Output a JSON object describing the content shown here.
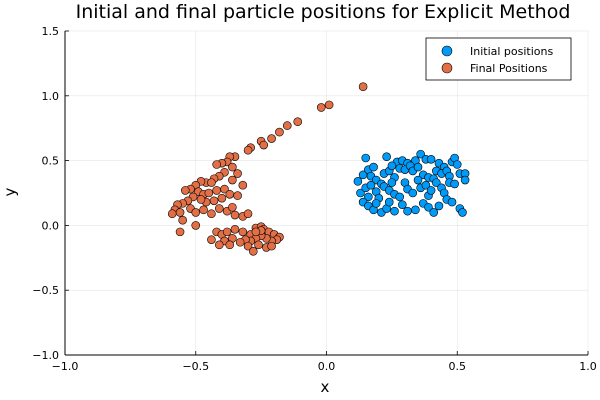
{
  "chart_data": {
    "type": "scatter",
    "title": "Initial and final particle positions for Explicit Method",
    "xlabel": "x",
    "ylabel": "y",
    "xlim": [
      -1.0,
      1.0
    ],
    "ylim": [
      -1.0,
      1.5
    ],
    "xticks": [
      -1.0,
      -0.5,
      0.0,
      0.5,
      1.0
    ],
    "xtick_labels": [
      "−1.0",
      "−0.5",
      "0.0",
      "0.5",
      "1.0"
    ],
    "yticks": [
      -1.0,
      -0.5,
      0.0,
      0.5,
      1.0,
      1.5
    ],
    "ytick_labels": [
      "−1.0",
      "−0.5",
      "0.0",
      "0.5",
      "1.0",
      "1.5"
    ],
    "grid": true,
    "legend_position": "top-right",
    "series": [
      {
        "name": "Initial positions",
        "color": "#009af9",
        "points": [
          [
            0.15,
            0.52
          ],
          [
            0.23,
            0.53
          ],
          [
            0.27,
            0.49
          ],
          [
            0.29,
            0.5
          ],
          [
            0.31,
            0.48
          ],
          [
            0.34,
            0.5
          ],
          [
            0.36,
            0.55
          ],
          [
            0.38,
            0.51
          ],
          [
            0.4,
            0.51
          ],
          [
            0.43,
            0.48
          ],
          [
            0.48,
            0.49
          ],
          [
            0.49,
            0.52
          ],
          [
            0.45,
            0.45
          ],
          [
            0.5,
            0.47
          ],
          [
            0.12,
            0.34
          ],
          [
            0.14,
            0.39
          ],
          [
            0.16,
            0.43
          ],
          [
            0.17,
            0.38
          ],
          [
            0.18,
            0.45
          ],
          [
            0.19,
            0.35
          ],
          [
            0.21,
            0.32
          ],
          [
            0.22,
            0.4
          ],
          [
            0.24,
            0.42
          ],
          [
            0.25,
            0.46
          ],
          [
            0.26,
            0.37
          ],
          [
            0.28,
            0.44
          ],
          [
            0.3,
            0.43
          ],
          [
            0.32,
            0.46
          ],
          [
            0.33,
            0.42
          ],
          [
            0.35,
            0.45
          ],
          [
            0.37,
            0.39
          ],
          [
            0.39,
            0.37
          ],
          [
            0.41,
            0.36
          ],
          [
            0.42,
            0.42
          ],
          [
            0.44,
            0.4
          ],
          [
            0.46,
            0.42
          ],
          [
            0.47,
            0.38
          ],
          [
            0.51,
            0.4
          ],
          [
            0.53,
            0.4
          ],
          [
            0.53,
            0.35
          ],
          [
            0.13,
            0.25
          ],
          [
            0.15,
            0.29
          ],
          [
            0.16,
            0.22
          ],
          [
            0.17,
            0.31
          ],
          [
            0.19,
            0.26
          ],
          [
            0.2,
            0.21
          ],
          [
            0.22,
            0.3
          ],
          [
            0.24,
            0.27
          ],
          [
            0.25,
            0.33
          ],
          [
            0.26,
            0.24
          ],
          [
            0.28,
            0.22
          ],
          [
            0.3,
            0.33
          ],
          [
            0.31,
            0.28
          ],
          [
            0.33,
            0.25
          ],
          [
            0.35,
            0.35
          ],
          [
            0.36,
            0.29
          ],
          [
            0.38,
            0.31
          ],
          [
            0.39,
            0.23
          ],
          [
            0.4,
            0.27
          ],
          [
            0.42,
            0.33
          ],
          [
            0.44,
            0.29
          ],
          [
            0.45,
            0.25
          ],
          [
            0.47,
            0.33
          ],
          [
            0.49,
            0.32
          ],
          [
            0.14,
            0.18
          ],
          [
            0.16,
            0.15
          ],
          [
            0.18,
            0.12
          ],
          [
            0.19,
            0.17
          ],
          [
            0.21,
            0.1
          ],
          [
            0.23,
            0.13
          ],
          [
            0.24,
            0.18
          ],
          [
            0.26,
            0.11
          ],
          [
            0.29,
            0.16
          ],
          [
            0.31,
            0.11
          ],
          [
            0.34,
            0.12
          ],
          [
            0.37,
            0.17
          ],
          [
            0.39,
            0.14
          ],
          [
            0.41,
            0.1
          ],
          [
            0.43,
            0.15
          ],
          [
            0.46,
            0.2
          ],
          [
            0.48,
            0.18
          ],
          [
            0.51,
            0.13
          ],
          [
            0.52,
            0.1
          ]
        ]
      },
      {
        "name": "Final Positions",
        "color": "#e26f46",
        "points": [
          [
            0.14,
            1.07
          ],
          [
            0.01,
            0.93
          ],
          [
            -0.02,
            0.91
          ],
          [
            -0.11,
            0.8
          ],
          [
            -0.15,
            0.77
          ],
          [
            -0.18,
            0.72
          ],
          [
            -0.21,
            0.67
          ],
          [
            -0.25,
            0.65
          ],
          [
            -0.24,
            0.62
          ],
          [
            -0.29,
            0.6
          ],
          [
            -0.3,
            0.58
          ],
          [
            -0.35,
            0.53
          ],
          [
            -0.37,
            0.53
          ],
          [
            -0.38,
            0.49
          ],
          [
            -0.4,
            0.48
          ],
          [
            -0.42,
            0.47
          ],
          [
            -0.36,
            0.45
          ],
          [
            -0.34,
            0.4
          ],
          [
            -0.39,
            0.41
          ],
          [
            -0.41,
            0.38
          ],
          [
            -0.43,
            0.36
          ],
          [
            -0.46,
            0.33
          ],
          [
            -0.48,
            0.34
          ],
          [
            -0.44,
            0.33
          ],
          [
            -0.36,
            0.35
          ],
          [
            -0.32,
            0.31
          ],
          [
            -0.5,
            0.31
          ],
          [
            -0.52,
            0.28
          ],
          [
            -0.54,
            0.27
          ],
          [
            -0.49,
            0.26
          ],
          [
            -0.47,
            0.24
          ],
          [
            -0.45,
            0.25
          ],
          [
            -0.42,
            0.27
          ],
          [
            -0.39,
            0.28
          ],
          [
            -0.37,
            0.24
          ],
          [
            -0.34,
            0.23
          ],
          [
            -0.4,
            0.21
          ],
          [
            -0.43,
            0.19
          ],
          [
            -0.46,
            0.18
          ],
          [
            -0.48,
            0.2
          ],
          [
            -0.51,
            0.22
          ],
          [
            -0.53,
            0.19
          ],
          [
            -0.55,
            0.17
          ],
          [
            -0.57,
            0.16
          ],
          [
            -0.58,
            0.12
          ],
          [
            -0.56,
            0.1
          ],
          [
            -0.59,
            0.09
          ],
          [
            -0.52,
            0.13
          ],
          [
            -0.5,
            0.1
          ],
          [
            -0.47,
            0.12
          ],
          [
            -0.44,
            0.09
          ],
          [
            -0.41,
            0.13
          ],
          [
            -0.38,
            0.11
          ],
          [
            -0.36,
            0.14
          ],
          [
            -0.35,
            0.08
          ],
          [
            -0.32,
            0.07
          ],
          [
            -0.3,
            0.09
          ],
          [
            -0.55,
            0.04
          ],
          [
            -0.56,
            -0.05
          ],
          [
            -0.5,
            0.0
          ],
          [
            -0.42,
            -0.05
          ],
          [
            -0.4,
            -0.07
          ],
          [
            -0.38,
            -0.05
          ],
          [
            -0.35,
            -0.03
          ],
          [
            -0.32,
            -0.05
          ],
          [
            -0.29,
            -0.07
          ],
          [
            -0.27,
            -0.02
          ],
          [
            -0.25,
            -0.01
          ],
          [
            -0.24,
            -0.03
          ],
          [
            -0.22,
            -0.05
          ],
          [
            -0.2,
            -0.07
          ],
          [
            -0.18,
            -0.09
          ],
          [
            -0.19,
            -0.11
          ],
          [
            -0.21,
            -0.12
          ],
          [
            -0.23,
            -0.1
          ],
          [
            -0.25,
            -0.08
          ],
          [
            -0.27,
            -0.1
          ],
          [
            -0.29,
            -0.12
          ],
          [
            -0.31,
            -0.11
          ],
          [
            -0.33,
            -0.13
          ],
          [
            -0.36,
            -0.1
          ],
          [
            -0.39,
            -0.12
          ],
          [
            -0.41,
            -0.15
          ],
          [
            -0.44,
            -0.11
          ],
          [
            -0.37,
            -0.15
          ],
          [
            -0.3,
            -0.16
          ],
          [
            -0.26,
            -0.15
          ],
          [
            -0.23,
            -0.17
          ],
          [
            -0.28,
            -0.2
          ],
          [
            -0.21,
            -0.16
          ],
          [
            -0.25,
            -0.04
          ],
          [
            -0.27,
            -0.05
          ]
        ]
      }
    ]
  }
}
